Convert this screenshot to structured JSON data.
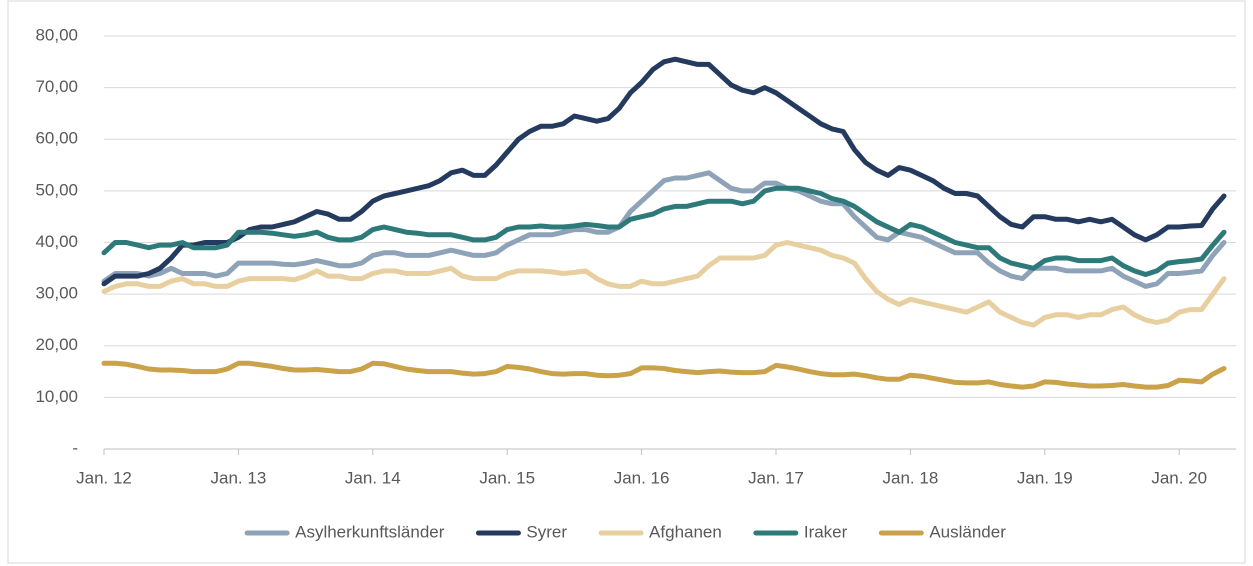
{
  "chart_data": {
    "type": "line",
    "categories": [
      "Jan. 12",
      null,
      null,
      null,
      null,
      null,
      null,
      null,
      null,
      null,
      null,
      null,
      "Jan. 13",
      null,
      null,
      null,
      null,
      null,
      null,
      null,
      null,
      null,
      null,
      null,
      "Jan. 14",
      null,
      null,
      null,
      null,
      null,
      null,
      null,
      null,
      null,
      null,
      null,
      "Jan. 15",
      null,
      null,
      null,
      null,
      null,
      null,
      null,
      null,
      null,
      null,
      null,
      "Jan. 16",
      null,
      null,
      null,
      null,
      null,
      null,
      null,
      null,
      null,
      null,
      null,
      "Jan. 17",
      null,
      null,
      null,
      null,
      null,
      null,
      null,
      null,
      null,
      null,
      null,
      "Jan. 18",
      null,
      null,
      null,
      null,
      null,
      null,
      null,
      null,
      null,
      null,
      null,
      "Jan. 19",
      null,
      null,
      null,
      null,
      null,
      null,
      null,
      null,
      null,
      null,
      null,
      "Jan. 20",
      null,
      null,
      null,
      null
    ],
    "ylim": [
      0,
      80
    ],
    "yticks": [
      {
        "value": 0,
        "label": "-"
      },
      {
        "value": 10,
        "label": "10,00"
      },
      {
        "value": 20,
        "label": "20,00"
      },
      {
        "value": 30,
        "label": "30,00"
      },
      {
        "value": 40,
        "label": "40,00"
      },
      {
        "value": 50,
        "label": "50,00"
      },
      {
        "value": 60,
        "label": "60,00"
      },
      {
        "value": 70,
        "label": "70,00"
      },
      {
        "value": 80,
        "label": "80,00"
      }
    ],
    "grid": true,
    "legend": "bottom",
    "series": [
      {
        "name": "Asylherkunftsländer",
        "color": "#8fa3b8",
        "values": [
          32.5,
          34,
          34,
          34,
          33.5,
          34,
          35,
          34,
          34,
          34,
          33.5,
          34,
          36,
          36,
          36,
          36,
          35.8,
          35.7,
          36,
          36.5,
          36,
          35.5,
          35.5,
          36,
          37.5,
          38,
          38,
          37.5,
          37.5,
          37.5,
          38,
          38.5,
          38,
          37.5,
          37.5,
          38,
          39.5,
          40.5,
          41.5,
          41.5,
          41.5,
          42,
          42.5,
          42.5,
          42,
          42,
          43,
          46,
          48,
          50,
          52,
          52.5,
          52.5,
          53,
          53.5,
          52,
          50.5,
          50,
          50,
          51.5,
          51.5,
          50.5,
          50,
          49,
          48,
          47.5,
          47.5,
          45,
          43,
          41,
          40.5,
          42,
          41.5,
          41,
          40,
          39,
          38,
          38,
          38,
          36,
          34.5,
          33.5,
          33,
          35,
          35,
          35,
          34.5,
          34.5,
          34.5,
          34.5,
          35,
          33.5,
          32.5,
          31.5,
          32,
          34,
          34,
          34.2,
          34.5,
          37.5,
          40
        ]
      },
      {
        "name": "Syrer",
        "color": "#243a5e",
        "values": [
          32,
          33.5,
          33.5,
          33.5,
          34,
          35,
          37,
          39.5,
          39.5,
          40,
          40,
          40,
          41,
          42.5,
          43,
          43,
          43.5,
          44,
          45,
          46,
          45.5,
          44.5,
          44.5,
          46,
          48,
          49,
          49.5,
          50,
          50.5,
          51,
          52,
          53.5,
          54,
          53,
          53,
          55,
          57.5,
          60,
          61.5,
          62.5,
          62.5,
          63,
          64.5,
          64,
          63.5,
          64,
          66,
          69,
          71,
          73.5,
          75,
          75.5,
          75,
          74.5,
          74.5,
          72.5,
          70.5,
          69.5,
          69,
          70,
          69,
          67.5,
          66,
          64.5,
          63,
          62,
          61.5,
          58,
          55.5,
          54,
          53,
          54.5,
          54,
          53,
          52,
          50.5,
          49.5,
          49.5,
          49,
          47,
          45,
          43.5,
          43,
          45,
          45,
          44.5,
          44.5,
          44,
          44.5,
          44,
          44.5,
          43,
          41.5,
          40.5,
          41.5,
          43,
          43,
          43.2,
          43.3,
          46.5,
          49
        ]
      },
      {
        "name": "Afghanen",
        "color": "#e8cfa0",
        "values": [
          30.5,
          31.5,
          32,
          32,
          31.5,
          31.5,
          32.5,
          33,
          32,
          32,
          31.5,
          31.5,
          32.5,
          33,
          33,
          33,
          33,
          32.8,
          33.5,
          34.5,
          33.5,
          33.5,
          33,
          33,
          34,
          34.5,
          34.5,
          34,
          34,
          34,
          34.5,
          35,
          33.5,
          33,
          33,
          33,
          34,
          34.5,
          34.5,
          34.5,
          34.3,
          34,
          34.2,
          34.5,
          33,
          32,
          31.5,
          31.5,
          32.5,
          32,
          32,
          32.5,
          33,
          33.5,
          35.5,
          37,
          37,
          37,
          37,
          37.5,
          39.5,
          40,
          39.5,
          39,
          38.5,
          37.5,
          37,
          36,
          33,
          30.5,
          29,
          28,
          29,
          28.5,
          28,
          27.5,
          27,
          26.5,
          27.5,
          28.5,
          26.5,
          25.5,
          24.5,
          24,
          25.5,
          26,
          26,
          25.5,
          26,
          26,
          27,
          27.5,
          26,
          25,
          24.5,
          25,
          26.5,
          27,
          27,
          30,
          33
        ]
      },
      {
        "name": "Iraker",
        "color": "#2e7a7a",
        "values": [
          38,
          40,
          40,
          39.5,
          39,
          39.5,
          39.5,
          40,
          39,
          39,
          39,
          39.5,
          42,
          42,
          42,
          41.8,
          41.5,
          41.2,
          41.5,
          42,
          41,
          40.5,
          40.5,
          41,
          42.5,
          43,
          42.5,
          42,
          41.8,
          41.5,
          41.5,
          41.5,
          41,
          40.5,
          40.5,
          41,
          42.5,
          43,
          43,
          43.2,
          43,
          43,
          43.2,
          43.5,
          43.3,
          43,
          43,
          44.5,
          45,
          45.5,
          46.5,
          47,
          47,
          47.5,
          48,
          48,
          48,
          47.5,
          48,
          50,
          50.5,
          50.5,
          50.5,
          50,
          49.5,
          48.5,
          48,
          47,
          45.5,
          44,
          43,
          42,
          43.5,
          43,
          42,
          41,
          40,
          39.5,
          39,
          39,
          37,
          36,
          35.5,
          35,
          36.5,
          37,
          37,
          36.5,
          36.5,
          36.5,
          37,
          35.5,
          34.5,
          33.8,
          34.5,
          36,
          36.3,
          36.5,
          36.8,
          39.5,
          42
        ]
      },
      {
        "name": "Ausländer",
        "color": "#c9a24a",
        "values": [
          16.6,
          16.6,
          16.4,
          16,
          15.5,
          15.3,
          15.3,
          15.2,
          15,
          15,
          15,
          15.5,
          16.6,
          16.6,
          16.3,
          16,
          15.6,
          15.3,
          15.3,
          15.4,
          15.2,
          15,
          15,
          15.5,
          16.6,
          16.5,
          16,
          15.5,
          15.2,
          15,
          15,
          15,
          14.7,
          14.5,
          14.6,
          15,
          16,
          15.8,
          15.5,
          15,
          14.6,
          14.5,
          14.6,
          14.6,
          14.3,
          14.2,
          14.3,
          14.6,
          15.7,
          15.7,
          15.6,
          15.2,
          15,
          14.8,
          15,
          15.1,
          14.9,
          14.8,
          14.8,
          15,
          16.2,
          15.9,
          15.5,
          15,
          14.6,
          14.4,
          14.4,
          14.5,
          14.2,
          13.8,
          13.5,
          13.5,
          14.3,
          14.1,
          13.7,
          13.3,
          12.9,
          12.8,
          12.8,
          13,
          12.5,
          12.2,
          12,
          12.2,
          13,
          12.9,
          12.6,
          12.4,
          12.2,
          12.2,
          12.3,
          12.5,
          12.2,
          12,
          12,
          12.3,
          13.3,
          13.2,
          13,
          14.5,
          15.6
        ]
      }
    ]
  }
}
